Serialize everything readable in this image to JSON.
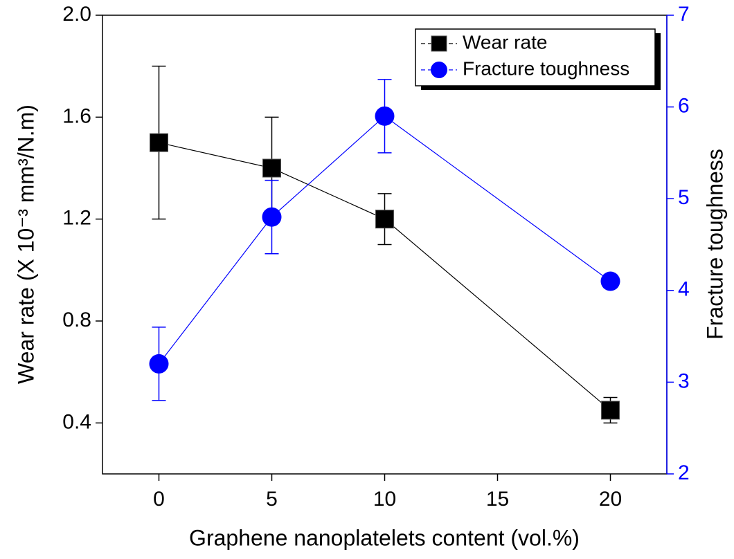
{
  "chart_data": {
    "type": "line",
    "x_label": "Graphene nanoplatelets content (vol.%)",
    "y_label": "Wear rate (X 10⁻³ mm³/N.m)",
    "y2_label": "Fracture toughness",
    "x": [
      0,
      5,
      10,
      20
    ],
    "xlim": [
      -2.5,
      22.5
    ],
    "xticks": [
      0,
      5,
      10,
      15,
      20
    ],
    "ylim": [
      0.2,
      2.0
    ],
    "yticks": [
      0.4,
      0.8,
      1.2,
      1.6,
      {
        "value": 2,
        "label": "2.0"
      }
    ],
    "y2lim": [
      2,
      7
    ],
    "y2ticks": [
      2,
      3,
      4,
      5,
      6,
      7
    ],
    "legend": "top-right",
    "series": [
      {
        "name": "Wear rate",
        "color": "#000000",
        "marker": "square",
        "values": [
          1.5,
          1.4,
          1.2,
          0.45
        ],
        "errors": [
          0.3,
          0.2,
          0.1,
          0.05
        ]
      },
      {
        "name": "Fracture toughness",
        "color": "#0000ff",
        "marker": "circle",
        "axis": "y2",
        "values": [
          3.2,
          4.8,
          5.9,
          4.1
        ],
        "errors": [
          0.4,
          0.4,
          0.4,
          0.05
        ]
      }
    ]
  }
}
